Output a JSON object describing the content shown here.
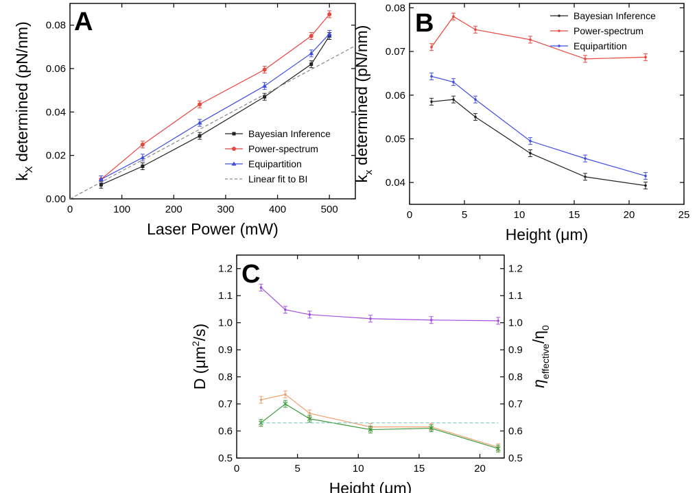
{
  "chart_data": [
    {
      "panel": "A",
      "type": "line",
      "xlabel": "Laser Power (mW)",
      "ylabel_main": "k",
      "ylabel_sub": "X",
      "ylabel_rest": " determined (pN/nm)",
      "xlim": [
        0,
        550
      ],
      "ylim": [
        0,
        0.09
      ],
      "xticks": [
        0,
        100,
        200,
        300,
        400,
        500
      ],
      "yticks": [
        "0.00",
        "0.02",
        "0.04",
        "0.06",
        "0.08"
      ],
      "legend": "bottom-right",
      "series": [
        {
          "name": "Bayesian Inference",
          "color": "#222222",
          "marker": "square",
          "x": [
            60,
            140,
            250,
            375,
            465,
            500
          ],
          "y": [
            0.0065,
            0.015,
            0.029,
            0.047,
            0.062,
            0.075
          ]
        },
        {
          "name": "Power-spectrum",
          "color": "#e8453c",
          "marker": "circle",
          "x": [
            60,
            140,
            250,
            375,
            465,
            500
          ],
          "y": [
            0.009,
            0.025,
            0.0435,
            0.0595,
            0.075,
            0.085
          ]
        },
        {
          "name": "Equipartition",
          "color": "#3e4de0",
          "marker": "triangle",
          "x": [
            60,
            140,
            250,
            375,
            465,
            500
          ],
          "y": [
            0.009,
            0.019,
            0.035,
            0.052,
            0.067,
            0.076
          ]
        },
        {
          "name": "Linear fit to BI",
          "color": "#888888",
          "marker": "none",
          "dashed": true,
          "x": [
            0,
            550
          ],
          "y": [
            0,
            0.0705
          ]
        }
      ]
    },
    {
      "panel": "B",
      "type": "line",
      "xlabel": "Height (μm)",
      "ylabel_main": "k",
      "ylabel_sub": "x",
      "ylabel_rest": " determined (pN/nm)",
      "xlim": [
        0,
        25
      ],
      "ylim": [
        0.035,
        0.081
      ],
      "xticks": [
        0,
        5,
        10,
        15,
        20,
        25
      ],
      "yticks": [
        "0.04",
        "0.05",
        "0.06",
        "0.07",
        "0.08"
      ],
      "legend": "top-right",
      "series": [
        {
          "name": "Bayesian Inference",
          "color": "#222222",
          "marker": "dot",
          "x": [
            2,
            4,
            6,
            11,
            16,
            21.5
          ],
          "y": [
            0.0585,
            0.059,
            0.055,
            0.0467,
            0.0413,
            0.0393
          ]
        },
        {
          "name": "Power-spectrum",
          "color": "#e8453c",
          "marker": "dot",
          "x": [
            2,
            4,
            6,
            11,
            16,
            21.5
          ],
          "y": [
            0.071,
            0.078,
            0.075,
            0.0727,
            0.0683,
            0.0687
          ]
        },
        {
          "name": "Equipartition",
          "color": "#3e4de0",
          "marker": "dot",
          "x": [
            2,
            4,
            6,
            11,
            16,
            21.5
          ],
          "y": [
            0.0643,
            0.063,
            0.059,
            0.0495,
            0.0455,
            0.0415
          ]
        }
      ]
    },
    {
      "panel": "C",
      "type": "line",
      "xlabel": "Height (μm)",
      "ylabel_left_main": "D (μm",
      "ylabel_left_sup": "2",
      "ylabel_left_rest": "/s)",
      "ylabel_right_main": "η",
      "ylabel_right_sub": "effective",
      "ylabel_right_rest": "/η",
      "ylabel_right_sub2": "0",
      "xlim": [
        0,
        22
      ],
      "ylim": [
        0.5,
        1.25
      ],
      "xticks": [
        0,
        5,
        10,
        15,
        20
      ],
      "yticks": [
        "0.5",
        "0.6",
        "0.7",
        "0.8",
        "0.9",
        "1.0",
        "1.1",
        "1.2"
      ],
      "legend": "none",
      "series": [
        {
          "color": "#a24fe0",
          "marker": "dot",
          "x": [
            2,
            4,
            6,
            11,
            16,
            21.5
          ],
          "y": [
            1.13,
            1.048,
            1.03,
            1.015,
            1.01,
            1.007
          ]
        },
        {
          "color": "#f0a070",
          "marker": "dot",
          "x": [
            2,
            4,
            6,
            11,
            16,
            21.5
          ],
          "y": [
            0.715,
            0.735,
            0.665,
            0.615,
            0.615,
            0.54
          ]
        },
        {
          "color": "#3a9a3a",
          "marker": "cross",
          "x": [
            2,
            4,
            6,
            11,
            16,
            21.5
          ],
          "y": [
            0.63,
            0.7,
            0.645,
            0.605,
            0.61,
            0.535
          ]
        },
        {
          "color": "#7fc8c0",
          "marker": "none",
          "dashed": true,
          "x": [
            2,
            21.5
          ],
          "y": [
            0.63,
            0.63
          ]
        }
      ]
    }
  ]
}
